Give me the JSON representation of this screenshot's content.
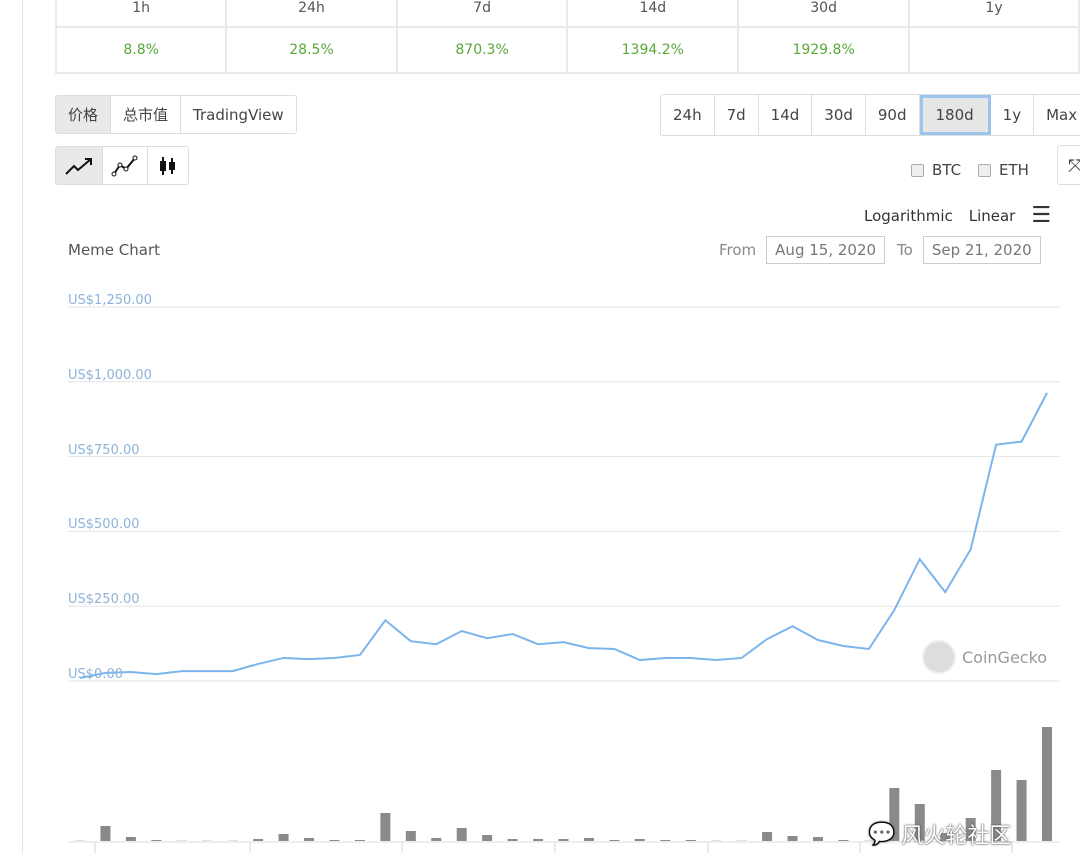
{
  "performance": {
    "headers": [
      "1h",
      "24h",
      "7d",
      "14d",
      "30d",
      "1y"
    ],
    "values": [
      "8.8%",
      "28.5%",
      "870.3%",
      "1394.2%",
      "1929.8%",
      ""
    ],
    "positive_color": "#59a93a"
  },
  "view_tabs": [
    {
      "label": "价格",
      "active": true
    },
    {
      "label": "总市值",
      "active": false
    },
    {
      "label": "TradingView",
      "active": false
    }
  ],
  "range_tabs": [
    {
      "label": "24h"
    },
    {
      "label": "7d"
    },
    {
      "label": "14d"
    },
    {
      "label": "30d"
    },
    {
      "label": "90d"
    },
    {
      "label": "180d",
      "active": true
    },
    {
      "label": "1y"
    },
    {
      "label": "Max"
    }
  ],
  "chart_types": [
    "line-chart-icon",
    "ohlc-line-icon",
    "candlestick-icon"
  ],
  "compare": {
    "btc": "BTC",
    "eth": "ETH"
  },
  "scale": {
    "log": "Logarithmic",
    "linear": "Linear"
  },
  "chart_title": "Meme Chart",
  "dates": {
    "from_label": "From",
    "from": "Aug 15, 2020",
    "to_label": "To",
    "to": "Sep 21, 2020"
  },
  "brand": "CoinGecko",
  "watermark": "风火轮社区",
  "chart_data": {
    "type": "line",
    "title": "Meme Chart",
    "y_ticks": [
      "US$0.00",
      "US$250.00",
      "US$500.00",
      "US$750.00",
      "US$1,000.00",
      "US$1,250.00"
    ],
    "ylim": [
      0,
      1250
    ],
    "grid": true,
    "line_color": "#7cb5ec",
    "price": [
      10,
      27,
      30,
      23,
      33,
      33,
      33,
      57,
      77,
      73,
      77,
      87,
      203,
      133,
      123,
      167,
      143,
      157,
      123,
      130,
      110,
      107,
      70,
      77,
      77,
      70,
      77,
      140,
      183,
      137,
      117,
      107,
      237,
      407,
      297,
      440,
      790,
      800,
      963
    ],
    "volume_relative": [
      0,
      15,
      4,
      1,
      0,
      0,
      0,
      2,
      7,
      3,
      1,
      1,
      28,
      10,
      3,
      13,
      6,
      2,
      2,
      2,
      3,
      1,
      2,
      1,
      1,
      0,
      0,
      9,
      5,
      4,
      1,
      0,
      53,
      37,
      8,
      23,
      71,
      61,
      114
    ]
  }
}
